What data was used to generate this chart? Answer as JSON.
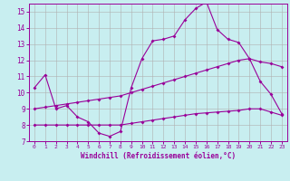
{
  "xlabel": "Windchill (Refroidissement éolien,°C)",
  "ylabel": "",
  "xlim": [
    -0.5,
    23.5
  ],
  "ylim": [
    7,
    15.5
  ],
  "xticks": [
    0,
    1,
    2,
    3,
    4,
    5,
    6,
    7,
    8,
    9,
    10,
    11,
    12,
    13,
    14,
    15,
    16,
    17,
    18,
    19,
    20,
    21,
    22,
    23
  ],
  "yticks": [
    7,
    8,
    9,
    10,
    11,
    12,
    13,
    14,
    15
  ],
  "bg_color": "#c8eef0",
  "line_color": "#990099",
  "grid_color": "#b0b0b0",
  "lines": [
    {
      "x": [
        0,
        1,
        2,
        3,
        4,
        5,
        6,
        7,
        8,
        9,
        10,
        11,
        12,
        13,
        14,
        15,
        16,
        17,
        18,
        19,
        20,
        21,
        22,
        23
      ],
      "y": [
        10.3,
        11.1,
        9.0,
        9.2,
        8.5,
        8.2,
        7.5,
        7.3,
        7.6,
        10.3,
        12.1,
        13.2,
        13.3,
        13.5,
        14.5,
        15.2,
        15.6,
        13.9,
        13.3,
        13.1,
        12.1,
        10.7,
        9.9,
        8.7
      ]
    },
    {
      "x": [
        0,
        1,
        2,
        3,
        4,
        5,
        6,
        7,
        8,
        9,
        10,
        11,
        12,
        13,
        14,
        15,
        16,
        17,
        18,
        19,
        20,
        21,
        22,
        23
      ],
      "y": [
        9.0,
        9.1,
        9.2,
        9.3,
        9.4,
        9.5,
        9.6,
        9.7,
        9.8,
        10.0,
        10.2,
        10.4,
        10.6,
        10.8,
        11.0,
        11.2,
        11.4,
        11.6,
        11.8,
        12.0,
        12.1,
        11.9,
        11.8,
        11.6
      ]
    },
    {
      "x": [
        0,
        1,
        2,
        3,
        4,
        5,
        6,
        7,
        8,
        9,
        10,
        11,
        12,
        13,
        14,
        15,
        16,
        17,
        18,
        19,
        20,
        21,
        22,
        23
      ],
      "y": [
        8.0,
        8.0,
        8.0,
        8.0,
        8.0,
        8.0,
        8.0,
        8.0,
        8.0,
        8.1,
        8.2,
        8.3,
        8.4,
        8.5,
        8.6,
        8.7,
        8.75,
        8.8,
        8.85,
        8.9,
        9.0,
        9.0,
        8.8,
        8.6
      ]
    }
  ]
}
